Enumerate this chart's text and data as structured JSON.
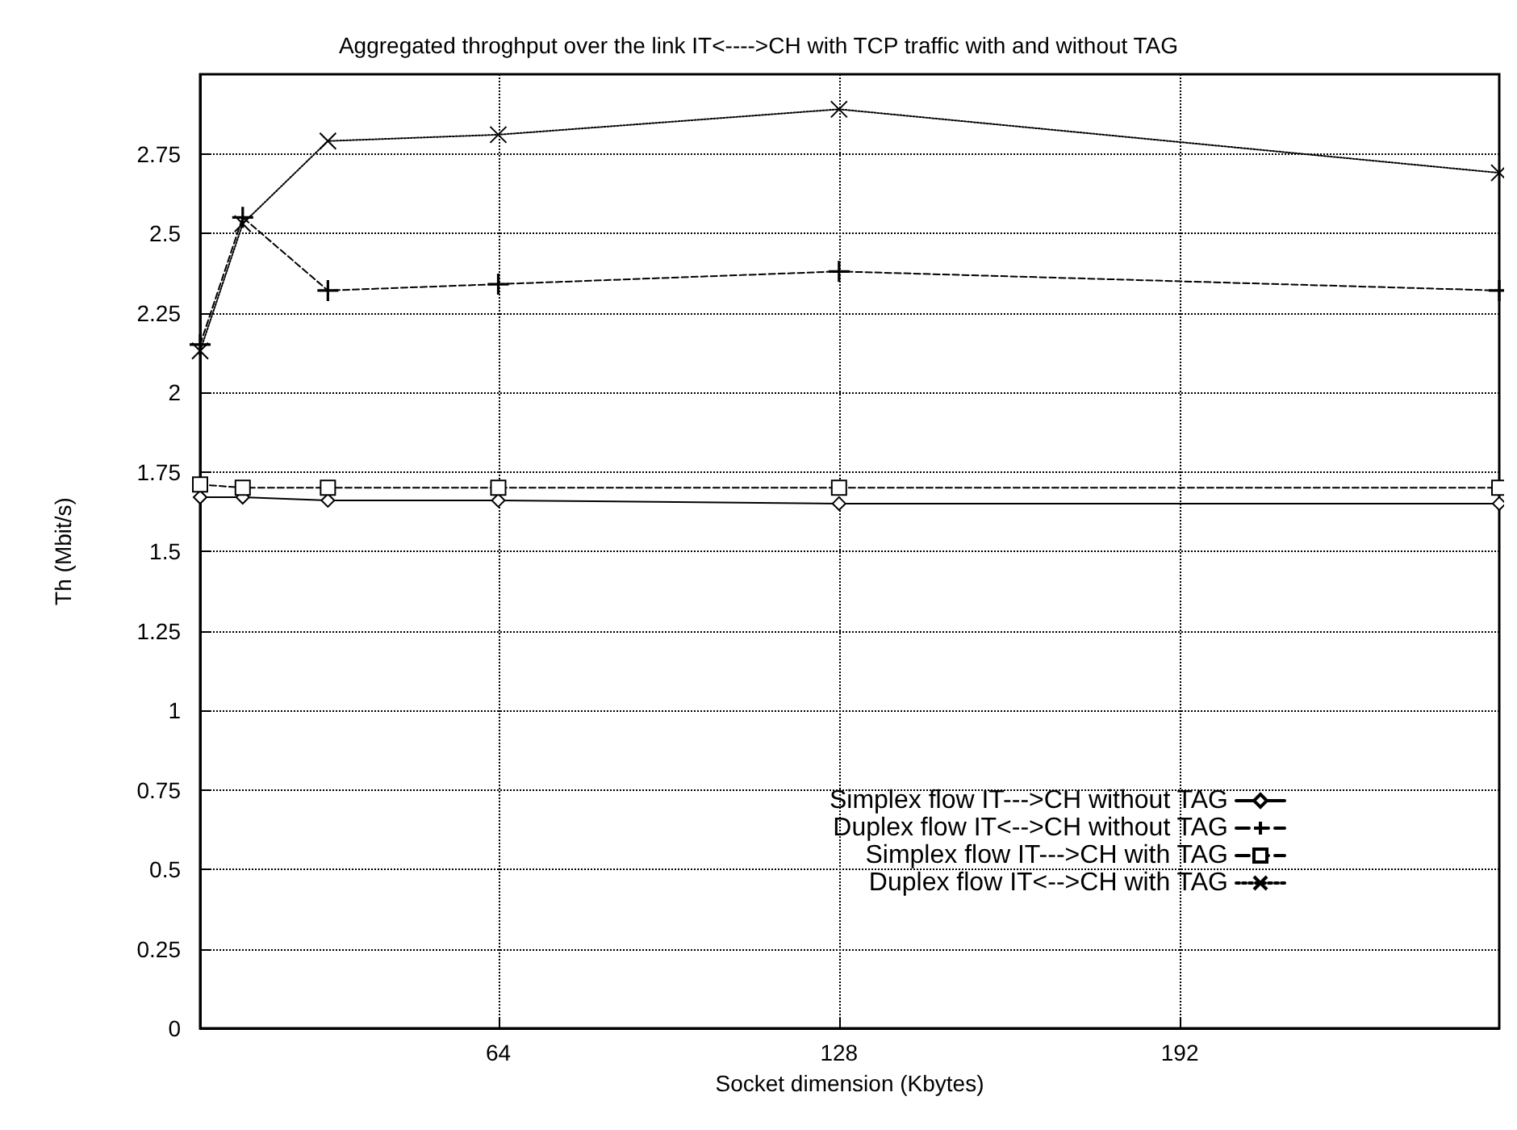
{
  "chart_data": {
    "type": "line",
    "title": "Aggregated throghput over the link IT<---->CH with TCP traffic with and without TAG",
    "xlabel": "Socket dimension (Kbytes)",
    "ylabel": "Th (Mbit/s)",
    "x": [
      8,
      16,
      32,
      64,
      128,
      252
    ],
    "series": [
      {
        "name": "Simplex flow IT--->CH without TAG",
        "color": "#000000",
        "marker": "diamond",
        "line_style": "solid",
        "values": [
          1.67,
          1.67,
          1.66,
          1.66,
          1.65,
          1.65
        ]
      },
      {
        "name": "Duplex flow IT<-->CH without TAG",
        "color": "#000000",
        "marker": "plus",
        "line_style": "dashed",
        "values": [
          2.15,
          2.55,
          2.32,
          2.34,
          2.38,
          2.32
        ]
      },
      {
        "name": "Simplex flow IT--->CH with TAG",
        "color": "#000000",
        "marker": "square",
        "line_style": "dashed",
        "values": [
          1.71,
          1.7,
          1.7,
          1.7,
          1.7,
          1.7
        ]
      },
      {
        "name": "Duplex flow IT<-->CH with TAG",
        "color": "#000000",
        "marker": "cross",
        "line_style": "dotted",
        "values": [
          2.13,
          2.53,
          2.79,
          2.81,
          2.89,
          2.69
        ]
      }
    ],
    "xlim": [
      8,
      252
    ],
    "xticks": [
      64,
      128,
      192
    ],
    "ylim": [
      0,
      3
    ],
    "yticks": [
      0,
      0.25,
      0.5,
      0.75,
      1,
      1.25,
      1.5,
      1.75,
      2,
      2.25,
      2.5,
      2.75
    ],
    "grid": true,
    "legend": "right"
  }
}
